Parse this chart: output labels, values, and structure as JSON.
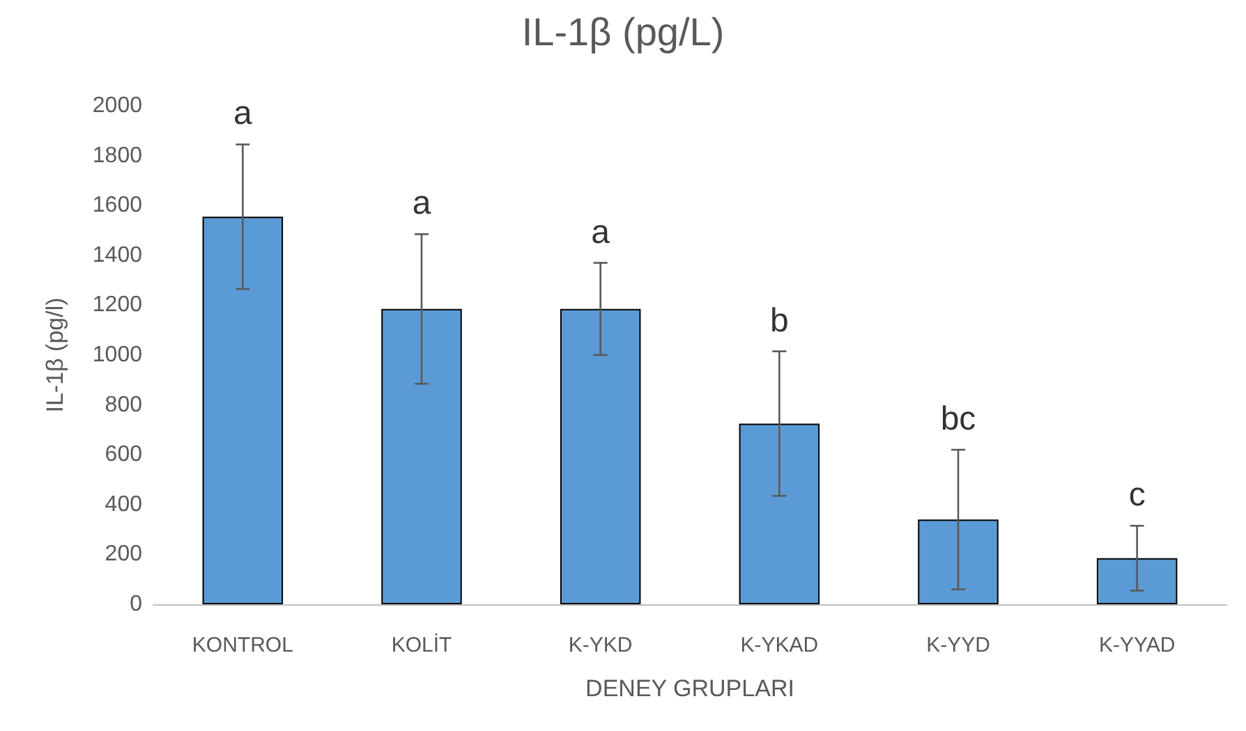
{
  "chart_data": {
    "type": "bar",
    "title": "IL-1β (pg/L)",
    "xlabel": "DENEY GRUPLARI",
    "ylabel": "IL-1β (pg/l)",
    "categories": [
      "KONTROL",
      "KOLİT",
      "K-YKD",
      "K-YKAD",
      "K-YYD",
      "K-YYAD"
    ],
    "values": [
      1555,
      1185,
      1185,
      725,
      340,
      185
    ],
    "errors": [
      290,
      300,
      185,
      290,
      280,
      130
    ],
    "color": "#5b9bd5",
    "ylim": [
      0,
      2000
    ],
    "yticks": [
      0,
      200,
      400,
      600,
      800,
      1000,
      1200,
      1400,
      1600,
      1800,
      2000
    ],
    "grid": false,
    "annotations": [
      {
        "text": "a",
        "x": "KONTROL",
        "y": 1845
      },
      {
        "text": "a",
        "x": "KOLİT",
        "y": 1485
      },
      {
        "text": "a",
        "x": "K-YKD",
        "y": 1370
      },
      {
        "text": "b",
        "x": "K-YKAD",
        "y": 1015
      },
      {
        "text": "bc",
        "x": "K-YYD",
        "y": 620
      },
      {
        "text": "c",
        "x": "K-YYAD",
        "y": 315
      }
    ]
  }
}
